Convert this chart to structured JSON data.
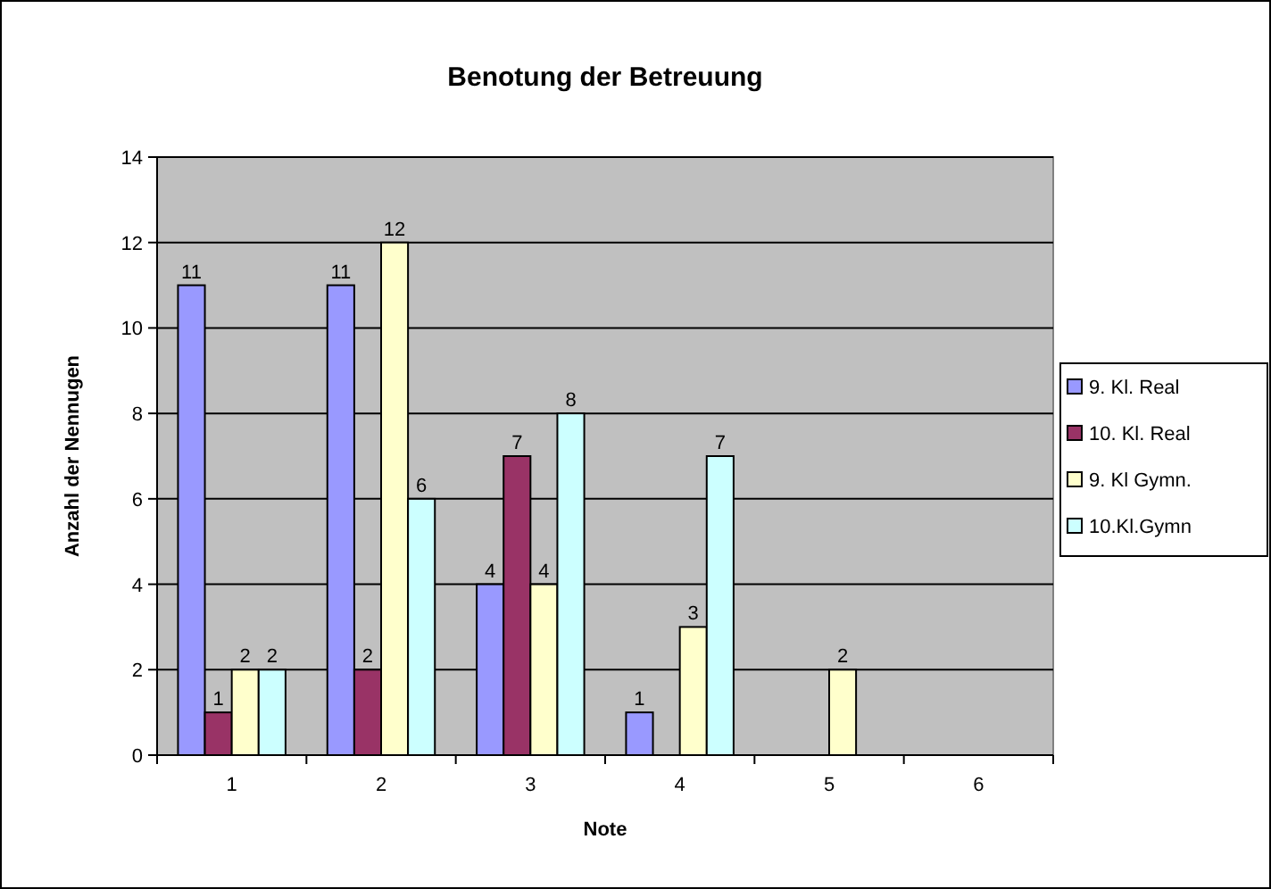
{
  "chart_data": {
    "type": "bar",
    "title": "Benotung der Betreuung",
    "xlabel": "Note",
    "ylabel": "Anzahl der Nennugen",
    "categories": [
      "1",
      "2",
      "3",
      "4",
      "5",
      "6"
    ],
    "series": [
      {
        "name": "9. Kl. Real",
        "color": "#9999ff",
        "values": [
          11,
          11,
          4,
          1,
          null,
          null
        ]
      },
      {
        "name": "10. Kl. Real",
        "color": "#993366",
        "values": [
          1,
          2,
          7,
          null,
          null,
          null
        ]
      },
      {
        "name": "9. Kl Gymn.",
        "color": "#ffffcc",
        "values": [
          2,
          12,
          4,
          3,
          2,
          null
        ]
      },
      {
        "name": "10.Kl.Gymn",
        "color": "#ccffff",
        "values": [
          2,
          6,
          8,
          7,
          null,
          null
        ]
      }
    ],
    "ylim": [
      0,
      14
    ],
    "yticks": [
      0,
      2,
      4,
      6,
      8,
      10,
      12,
      14
    ],
    "grid": "y",
    "legend": "right",
    "data_labels": true
  }
}
